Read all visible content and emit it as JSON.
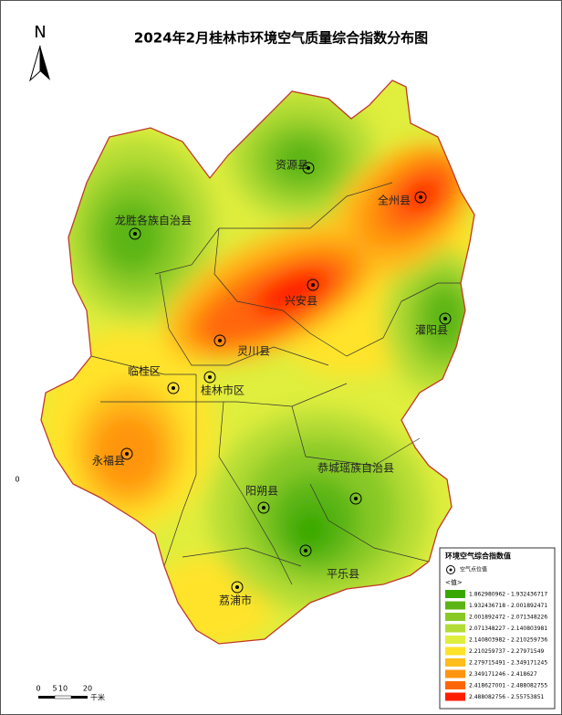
{
  "title": "2024年2月桂林市环境空气质量综合指数分布图",
  "north": "N",
  "edge_label": "0",
  "stations": [
    {
      "label": "资源县"
    },
    {
      "label": "全州县"
    },
    {
      "label": "龙胜各族自治县"
    },
    {
      "label": "兴安县"
    },
    {
      "label": "灌阳县"
    },
    {
      "label": "灵川县"
    },
    {
      "label": "临桂区"
    },
    {
      "label": "桂林市区"
    },
    {
      "label": "永福县"
    },
    {
      "label": "恭城瑶族自治县"
    },
    {
      "label": "阳朔县"
    },
    {
      "label": "平乐县"
    },
    {
      "label": "荔浦市"
    }
  ],
  "legend": {
    "title": "环境空气综合指数值",
    "site_label": "空气点位值",
    "value_header": "<值>",
    "classes": [
      {
        "label": "1.862980962 - 1.932436717",
        "color": "#38a800"
      },
      {
        "label": "1.932436718 - 2.001892471",
        "color": "#5cb514"
      },
      {
        "label": "2.001892472 - 2.071348226",
        "color": "#88c926"
      },
      {
        "label": "2.071348227 - 2.140803981",
        "color": "#b4dc36"
      },
      {
        "label": "2.140803982 - 2.210259736",
        "color": "#e0ee3e"
      },
      {
        "label": "2.210259737 - 2.27971549",
        "color": "#ffe32a"
      },
      {
        "label": "2.279715491 - 2.349171245",
        "color": "#ffbe1c"
      },
      {
        "label": "2.349171246 - 2.418627",
        "color": "#ff9510"
      },
      {
        "label": "2.418627001 - 2.488082755",
        "color": "#ff6608"
      },
      {
        "label": "2.488082756 - 2.55753851",
        "color": "#ff1e00"
      }
    ]
  },
  "scale": {
    "ticks": [
      "0",
      "5",
      "10",
      "20"
    ],
    "unit": "千米"
  }
}
